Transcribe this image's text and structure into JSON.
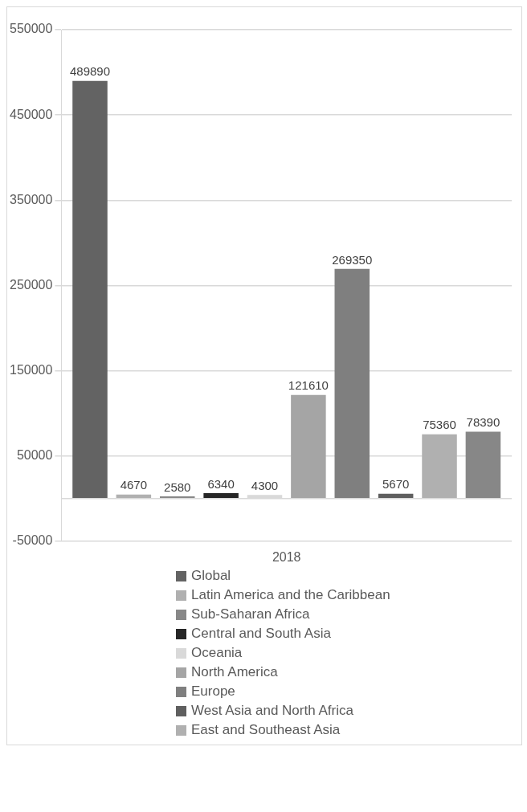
{
  "chart_data": {
    "type": "bar",
    "categories": [
      "2018"
    ],
    "series": [
      {
        "name": "Global",
        "color": "#636363",
        "values": [
          489890
        ]
      },
      {
        "name": "Latin America and the Caribbean",
        "color": "#b0b0b0",
        "values": [
          4670
        ]
      },
      {
        "name": "Sub-Saharan Africa",
        "color": "#888888",
        "values": [
          2580
        ]
      },
      {
        "name": "Central and South Asia",
        "color": "#262626",
        "values": [
          6340
        ]
      },
      {
        "name": "Oceania",
        "color": "#d9d9d9",
        "values": [
          4300
        ]
      },
      {
        "name": "North America",
        "color": "#a5a5a5",
        "values": [
          121610
        ]
      },
      {
        "name": "Europe",
        "color": "#7f7f7f",
        "values": [
          269350
        ]
      },
      {
        "name": "West Asia and North Africa",
        "color": "#5f5f5f",
        "values": [
          5670
        ]
      },
      {
        "name": "East and Southeast Asia",
        "color": "#b0b0b0",
        "values": [
          75360
        ]
      },
      {
        "color": "#878787",
        "values": [
          78390
        ]
      }
    ],
    "ylim": [
      -50000,
      550000
    ],
    "yticks": [
      -50000,
      50000,
      150000,
      250000,
      350000,
      450000,
      550000
    ],
    "grid": "y",
    "legend": "bottom",
    "data_labels": true
  }
}
